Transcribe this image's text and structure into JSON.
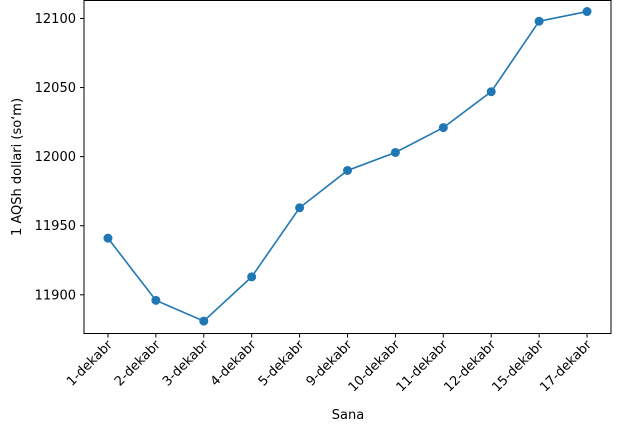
{
  "chart_data": {
    "type": "line",
    "xlabel": "Sana",
    "ylabel": "1 AQSh dollari (so‘m)",
    "categories": [
      "1-dekabr",
      "2-dekabr",
      "3-dekabr",
      "4-dekabr",
      "5-dekabr",
      "9-dekabr",
      "10-dekabr",
      "11-dekabr",
      "12-dekabr",
      "15-dekabr",
      "17-dekabr"
    ],
    "values": [
      11941,
      11896,
      11881,
      11913,
      11963,
      11990,
      12003,
      12021,
      12047,
      12098,
      12105
    ],
    "color": "#1f77b4",
    "ylim": [
      11872,
      12113
    ],
    "yticks": [
      11900,
      11950,
      12000,
      12050,
      12100
    ]
  }
}
